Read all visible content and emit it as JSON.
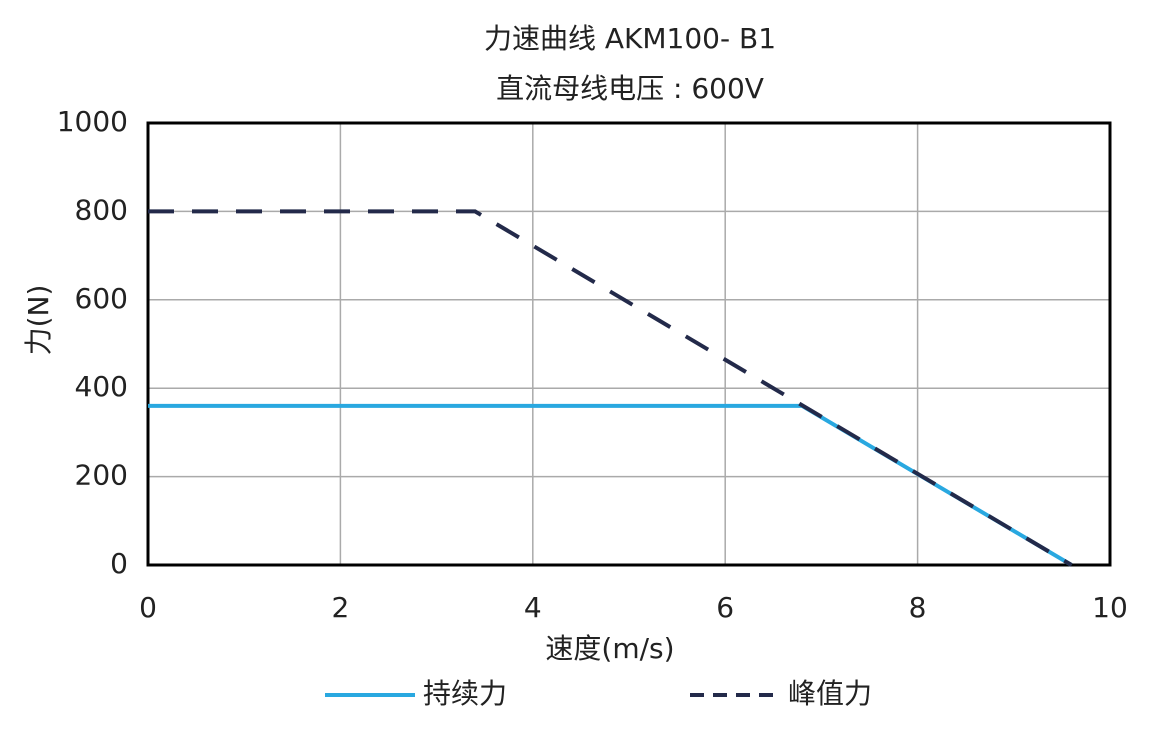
{
  "chart_data": {
    "type": "line",
    "title": "力速曲线 AKM100- B1",
    "subtitle": "直流母线电压 : 600V",
    "x_label": "速度(m/s)",
    "y_label": "力(N)",
    "xlim": [
      0,
      10
    ],
    "xticks": [
      0,
      2,
      4,
      6,
      8,
      10
    ],
    "ylim": [
      0,
      1000
    ],
    "yticks": [
      0,
      200,
      400,
      600,
      800,
      1000
    ],
    "grid": true,
    "legend": "bottom",
    "series": [
      {
        "name": "持续力",
        "color": "#29a8e0",
        "dashed": false,
        "x": [
          0,
          6.8,
          9.6
        ],
        "values": [
          360,
          360,
          0
        ]
      },
      {
        "name": "峰值力",
        "color": "#232a4a",
        "dashed": true,
        "x": [
          0,
          3.4,
          9.6
        ],
        "values": [
          800,
          800,
          0
        ]
      }
    ]
  }
}
